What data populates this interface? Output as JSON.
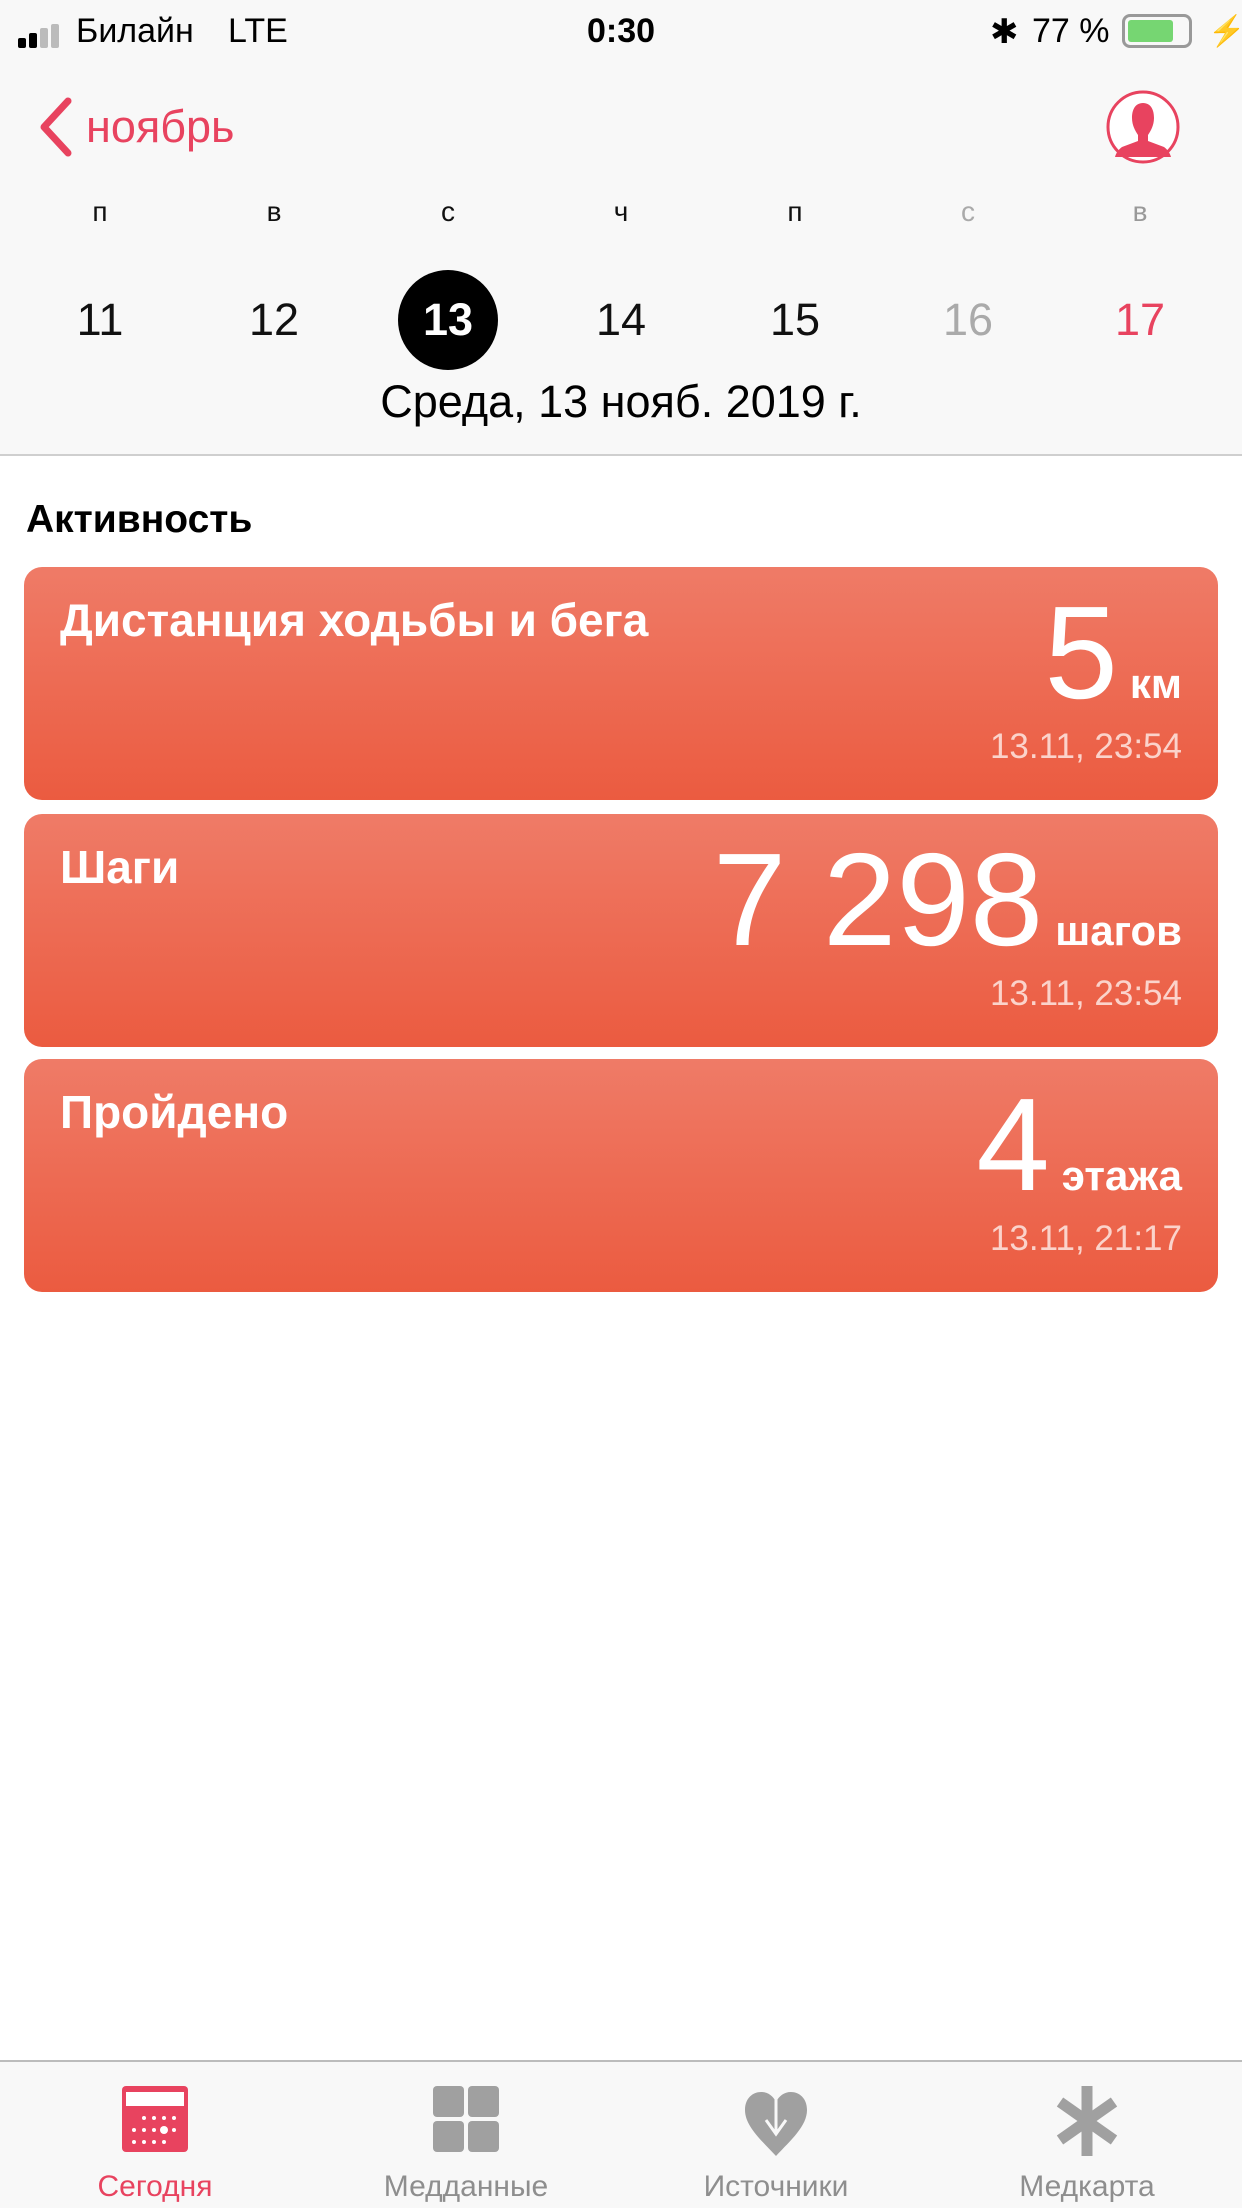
{
  "status": {
    "carrier": "Билайн",
    "network": "LTE",
    "time": "0:30",
    "battery": "77 %",
    "signal_bars": 2,
    "battery_level": 77
  },
  "nav": {
    "back_label": "ноябрь",
    "accent": "#e8435f"
  },
  "week": {
    "days": [
      "п",
      "в",
      "с",
      "ч",
      "п",
      "с",
      "в"
    ],
    "dates": [
      "11",
      "12",
      "13",
      "14",
      "15",
      "16",
      "17"
    ],
    "selected": "13",
    "date_text": "Среда, 13 нояб. 2019 г."
  },
  "section_title": "Активность",
  "cards": [
    {
      "title": "Дистанция ходьбы и бега",
      "value": "5",
      "unit": "км",
      "time": "13.11, 23:54"
    },
    {
      "title": "Шаги",
      "value": "7 298",
      "unit": "шагов",
      "time": "13.11, 23:54"
    },
    {
      "title": "Пройдено",
      "value": "4",
      "unit": "этажа",
      "time": "13.11, 21:17"
    }
  ],
  "tabs": [
    {
      "label": "Сегодня",
      "icon": "calendar-icon",
      "active": true
    },
    {
      "label": "Медданные",
      "icon": "grid-icon"
    },
    {
      "label": "Источники",
      "icon": "heart-download-icon"
    },
    {
      "label": "Медкарта",
      "icon": "asterisk-icon"
    }
  ]
}
